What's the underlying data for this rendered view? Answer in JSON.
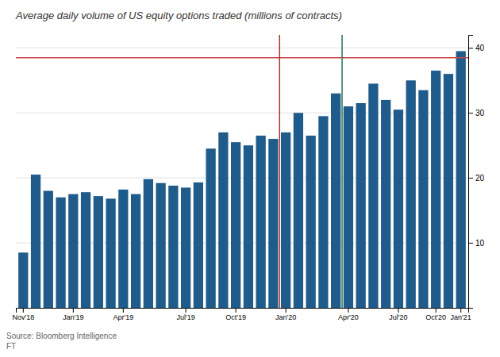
{
  "chart_data": {
    "type": "bar",
    "title": "Average daily volume of US equity options traded (millions of contracts)",
    "annotations": [
      "Source: Bloomberg Intelligence\nFT"
    ],
    "categories": [
      "Nov'18",
      null,
      null,
      null,
      "Jan'19",
      null,
      null,
      null,
      "Apr'19",
      null,
      null,
      null,
      null,
      "Jul'19",
      null,
      null,
      null,
      "Oct'19",
      null,
      null,
      null,
      "Jan'20",
      null,
      null,
      null,
      null,
      "Apr'20",
      null,
      null,
      null,
      "Jul'20",
      null,
      null,
      "Oct'20",
      null,
      "Jan'21"
    ],
    "values": [
      8.5,
      20.5,
      18.0,
      17.0,
      17.5,
      17.8,
      17.2,
      16.8,
      18.2,
      17.5,
      19.8,
      19.2,
      18.8,
      18.5,
      19.3,
      24.5,
      27.0,
      25.5,
      25.0,
      26.5,
      26.0,
      27.0,
      30.0,
      26.5,
      29.5,
      33.0,
      31.0,
      31.5,
      34.5,
      32.0,
      30.5,
      35.0,
      33.5,
      36.5,
      36.0,
      39.5
    ],
    "color": "#1f5c8b",
    "ylim": [
      0,
      42
    ],
    "yticks": [
      10,
      20,
      30,
      40
    ],
    "grid": true,
    "reference_lines": [
      {
        "axis": "y",
        "value": 38.5,
        "color": "#cc4444"
      },
      {
        "axis": "x",
        "value": 20.5,
        "color": "#aa3333"
      },
      {
        "axis": "x",
        "value": 25.5,
        "color": "#227755"
      }
    ]
  }
}
